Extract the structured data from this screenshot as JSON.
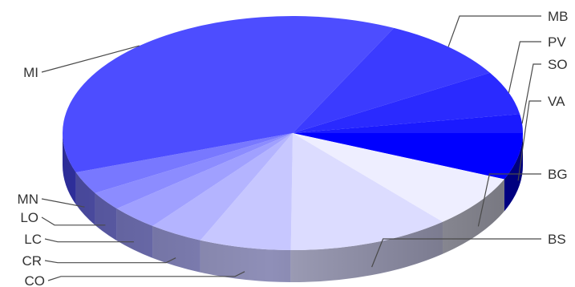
{
  "chart_data": {
    "type": "pie",
    "style": "3d",
    "title": "",
    "legend": "none",
    "slices": [
      {
        "label": "VA",
        "value": 6.2,
        "color": "#0000ff"
      },
      {
        "label": "BG",
        "value": 7.0,
        "color": "#eeeeff"
      },
      {
        "label": "BS",
        "value": 11.0,
        "color": "#dcdcff"
      },
      {
        "label": "CO",
        "value": 6.2,
        "color": "#c7c7ff"
      },
      {
        "label": "CR",
        "value": 3.7,
        "color": "#b4b4ff"
      },
      {
        "label": "LC",
        "value": 3.3,
        "color": "#a0a0ff"
      },
      {
        "label": "LO",
        "value": 2.5,
        "color": "#8c8cff"
      },
      {
        "label": "MN",
        "value": 3.0,
        "color": "#7878ff"
      },
      {
        "label": "MI",
        "value": 36.3,
        "color": "#4d4dff"
      },
      {
        "label": "MB",
        "value": 8.8,
        "color": "#3b3bff"
      },
      {
        "label": "PV",
        "value": 5.8,
        "color": "#2a2aff"
      },
      {
        "label": "SO",
        "value": 2.5,
        "color": "#1a1aff"
      }
    ]
  }
}
